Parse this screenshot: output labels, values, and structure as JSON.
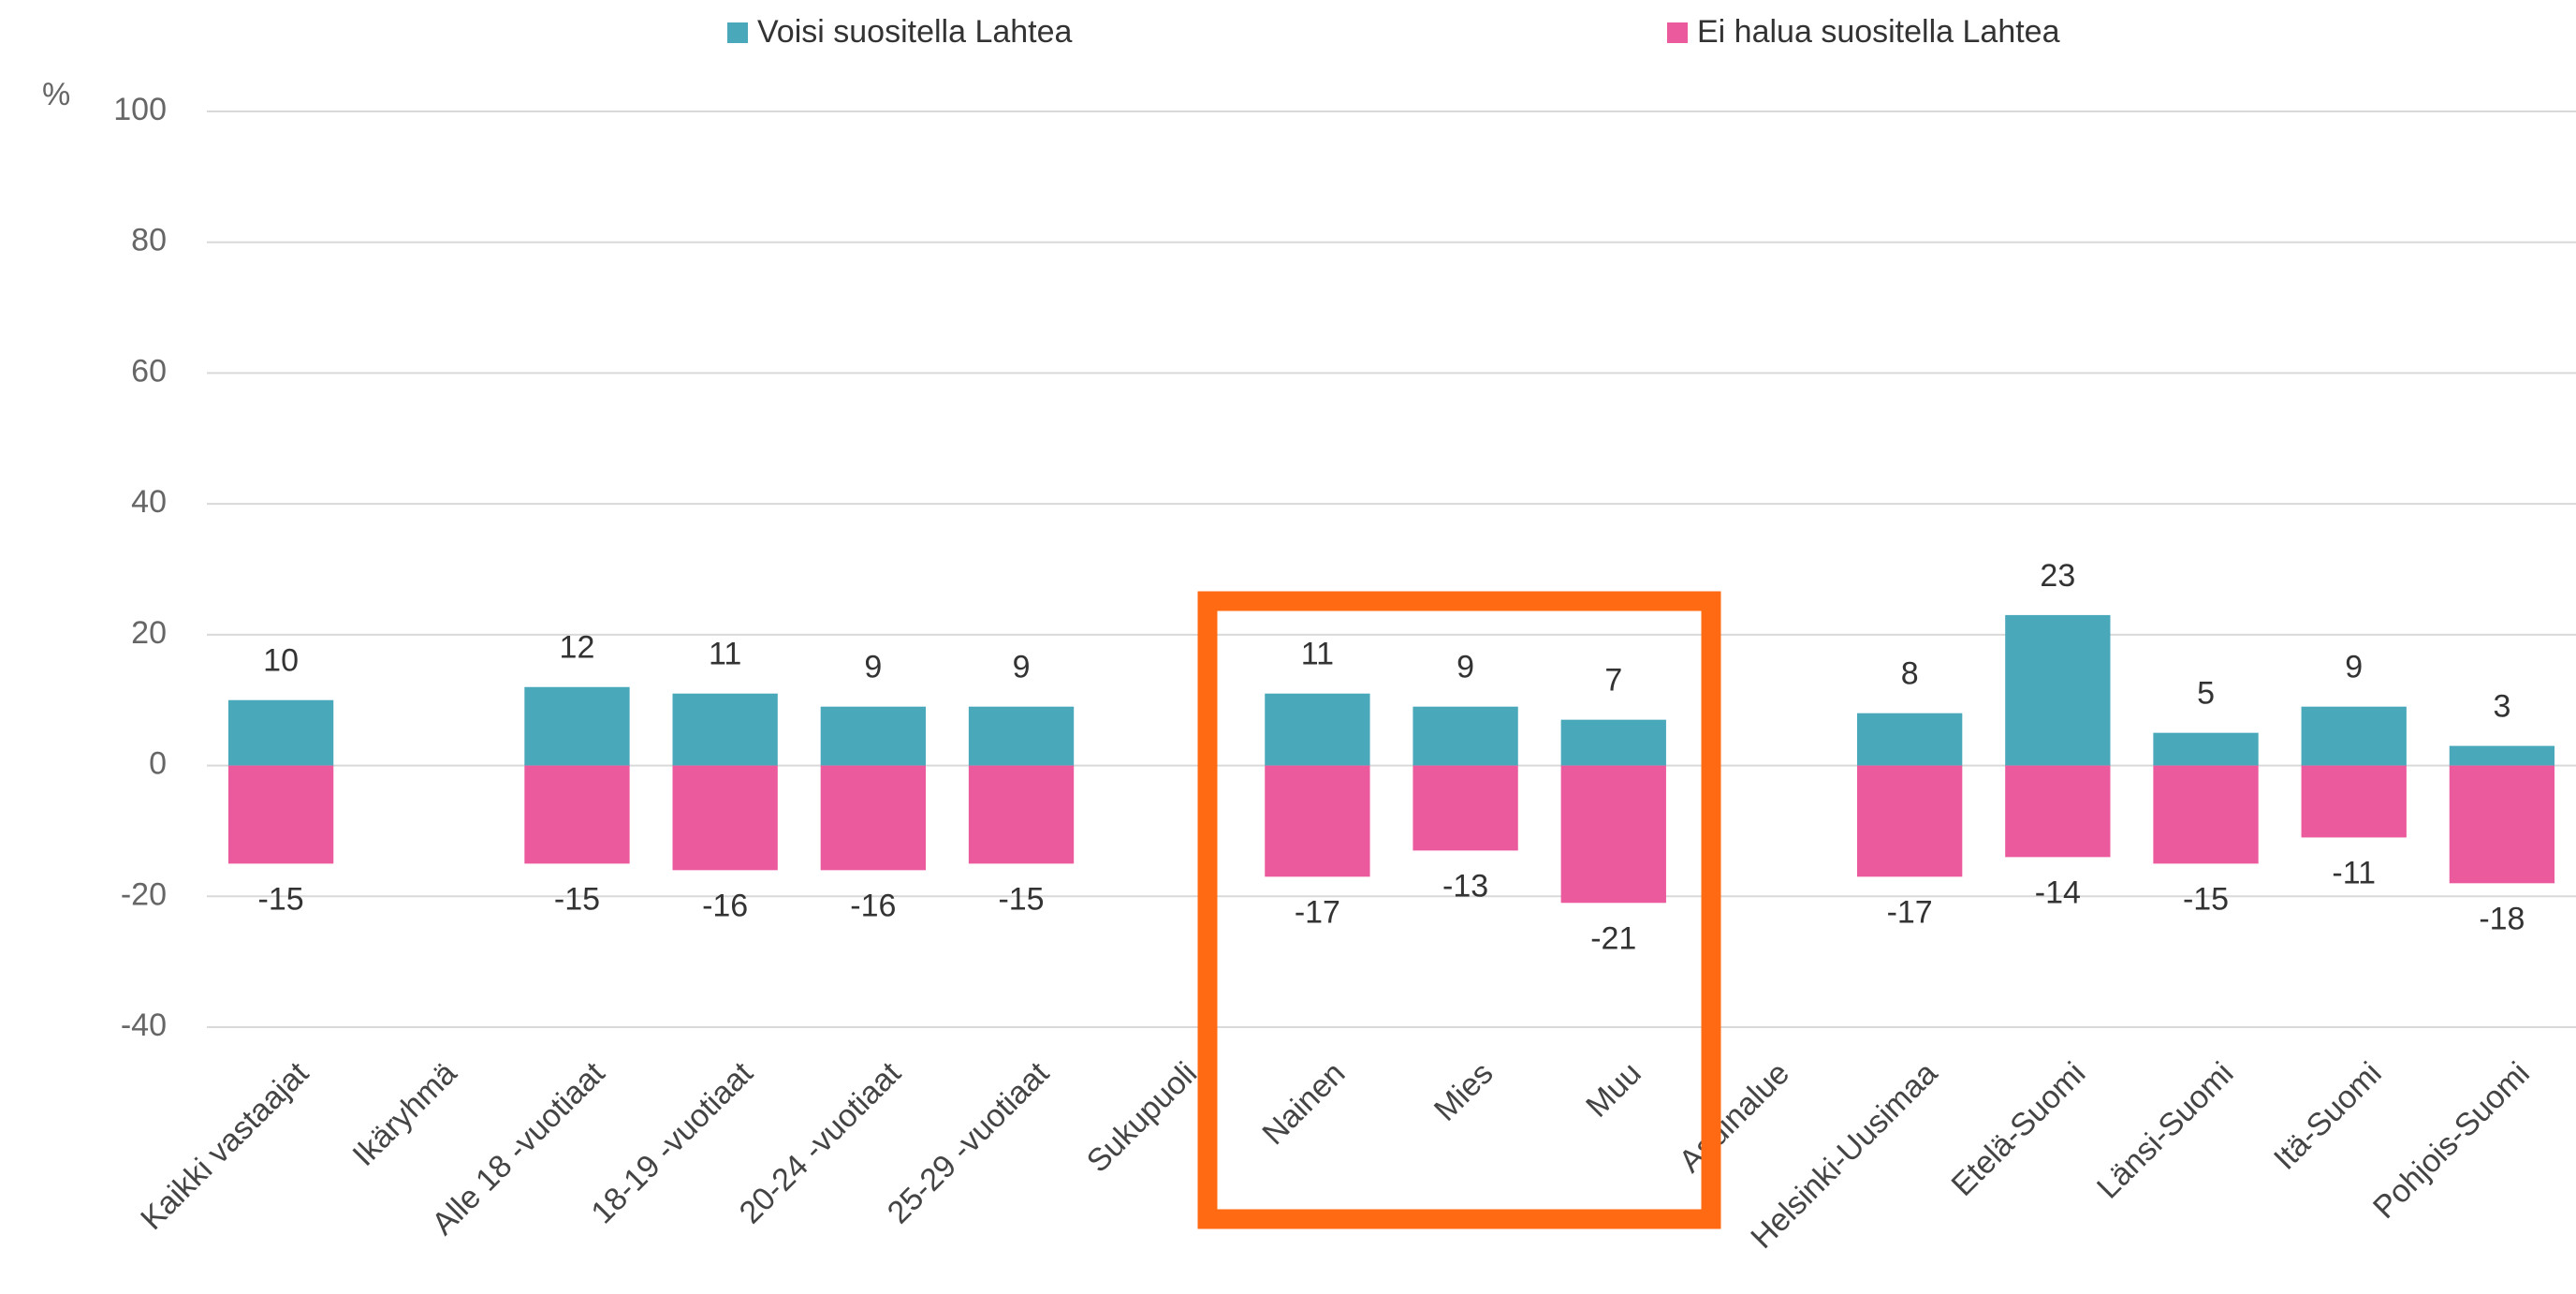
{
  "chart_data": {
    "type": "bar",
    "y_label": "%",
    "categories": [
      "Kaikki vastaajat",
      "Ikäryhmä",
      "Alle 18 -vuotiaat",
      "18-19 -vuotiaat",
      "20-24 -vuotiaat",
      "25-29 -vuotiaat",
      "Sukupuoli",
      "Nainen",
      "Mies",
      "Muu",
      "Asuinalue",
      "Helsinki-Uusimaa",
      "Etelä-Suomi",
      "Länsi-Suomi",
      "Itä-Suomi",
      "Pohjois-Suomi"
    ],
    "series": [
      {
        "name": "Voisi suositella Lahtea",
        "color": "#4aa8bb",
        "values": [
          10,
          null,
          12,
          11,
          9,
          9,
          null,
          11,
          9,
          7,
          null,
          8,
          23,
          5,
          9,
          3
        ]
      },
      {
        "name": "Ei halua suositella Lahtea",
        "color": "#ec5a9e",
        "values": [
          -15,
          null,
          -15,
          -16,
          -16,
          -15,
          null,
          -17,
          -13,
          -21,
          null,
          -17,
          -14,
          -15,
          -11,
          -18
        ]
      }
    ],
    "ylim": [
      -40,
      100
    ],
    "yticks": [
      -40,
      -20,
      0,
      20,
      40,
      60,
      80,
      100
    ],
    "grid": true,
    "legend": "top"
  }
}
